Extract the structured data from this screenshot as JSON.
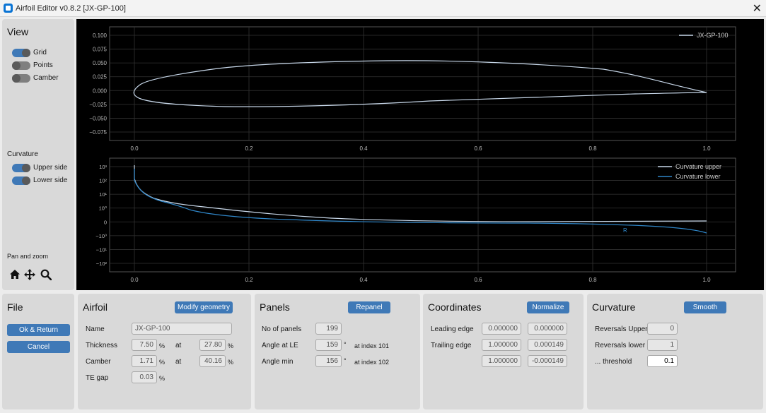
{
  "window": {
    "title": "Airfoil Editor  v0.8.2  [JX-GP-100]"
  },
  "view": {
    "heading": "View",
    "toggles": [
      {
        "label": "Grid",
        "on": true
      },
      {
        "label": "Points",
        "on": false
      },
      {
        "label": "Camber",
        "on": false
      }
    ],
    "curvature_heading": "Curvature",
    "curvature_toggles": [
      {
        "label": "Upper side",
        "on": true
      },
      {
        "label": "Lower side",
        "on": true
      }
    ],
    "panzoom_heading": "Pan and zoom",
    "tools": [
      "home-icon",
      "move-icon",
      "zoom-icon"
    ]
  },
  "plot_airfoil": {
    "legend": "JX-GP-100",
    "yticks": [
      "0.100",
      "0.075",
      "0.050",
      "0.025",
      "0.000",
      "−0.025",
      "−0.050",
      "−0.075"
    ],
    "xticks": [
      "0.0",
      "0.2",
      "0.4",
      "0.6",
      "0.8",
      "1.0"
    ]
  },
  "plot_curvature": {
    "legend": [
      "Curvature upper",
      "Curvature lower"
    ],
    "yticks": [
      "10³",
      "10²",
      "10¹",
      "10⁰",
      "0",
      "−10⁰",
      "−10¹",
      "−10²"
    ],
    "xticks": [
      "0.0",
      "0.2",
      "0.4",
      "0.6",
      "0.8",
      "1.0"
    ],
    "marker": "R"
  },
  "file": {
    "heading": "File",
    "ok_label": "Ok & Return",
    "cancel_label": "Cancel"
  },
  "airfoil": {
    "heading": "Airfoil",
    "modify_label": "Modify geometry",
    "name_label": "Name",
    "name_value": "JX-GP-100",
    "thickness_label": "Thickness",
    "thickness_value": "7.50",
    "thickness_at": "27.80",
    "camber_label": "Camber",
    "camber_value": "1.71",
    "camber_at": "40.16",
    "te_label": "TE gap",
    "te_value": "0.03",
    "pct": "%",
    "at": "at"
  },
  "panels": {
    "heading": "Panels",
    "repanel_label": "Repanel",
    "count_label": "No of panels",
    "count_value": "199",
    "angle_le_label": "Angle at LE",
    "angle_le_value": "159",
    "angle_le_at": "at index 101",
    "angle_min_label": "Angle min",
    "angle_min_value": "156",
    "angle_min_at": "at index 102",
    "deg": "°"
  },
  "coordinates": {
    "heading": "Coordinates",
    "normalize_label": "Normalize",
    "le_label": "Leading edge",
    "le_x": "0.000000",
    "le_y": "0.000000",
    "te_label": "Trailing edge",
    "te_x": "1.000000",
    "te_y": "0.000149",
    "te2_x": "1.000000",
    "te2_y": "-0.000149"
  },
  "curvature": {
    "heading": "Curvature",
    "smooth_label": "Smooth",
    "rev_upper_label": "Reversals Upper",
    "rev_upper_value": "0",
    "rev_lower_label": "Reversals lower",
    "rev_lower_value": "1",
    "threshold_label": "... threshold",
    "threshold_value": "0.1"
  },
  "colors": {
    "accent": "#3f79b7",
    "upper_curve": "#c8d8ea",
    "lower_curve": "#2f86c8"
  }
}
